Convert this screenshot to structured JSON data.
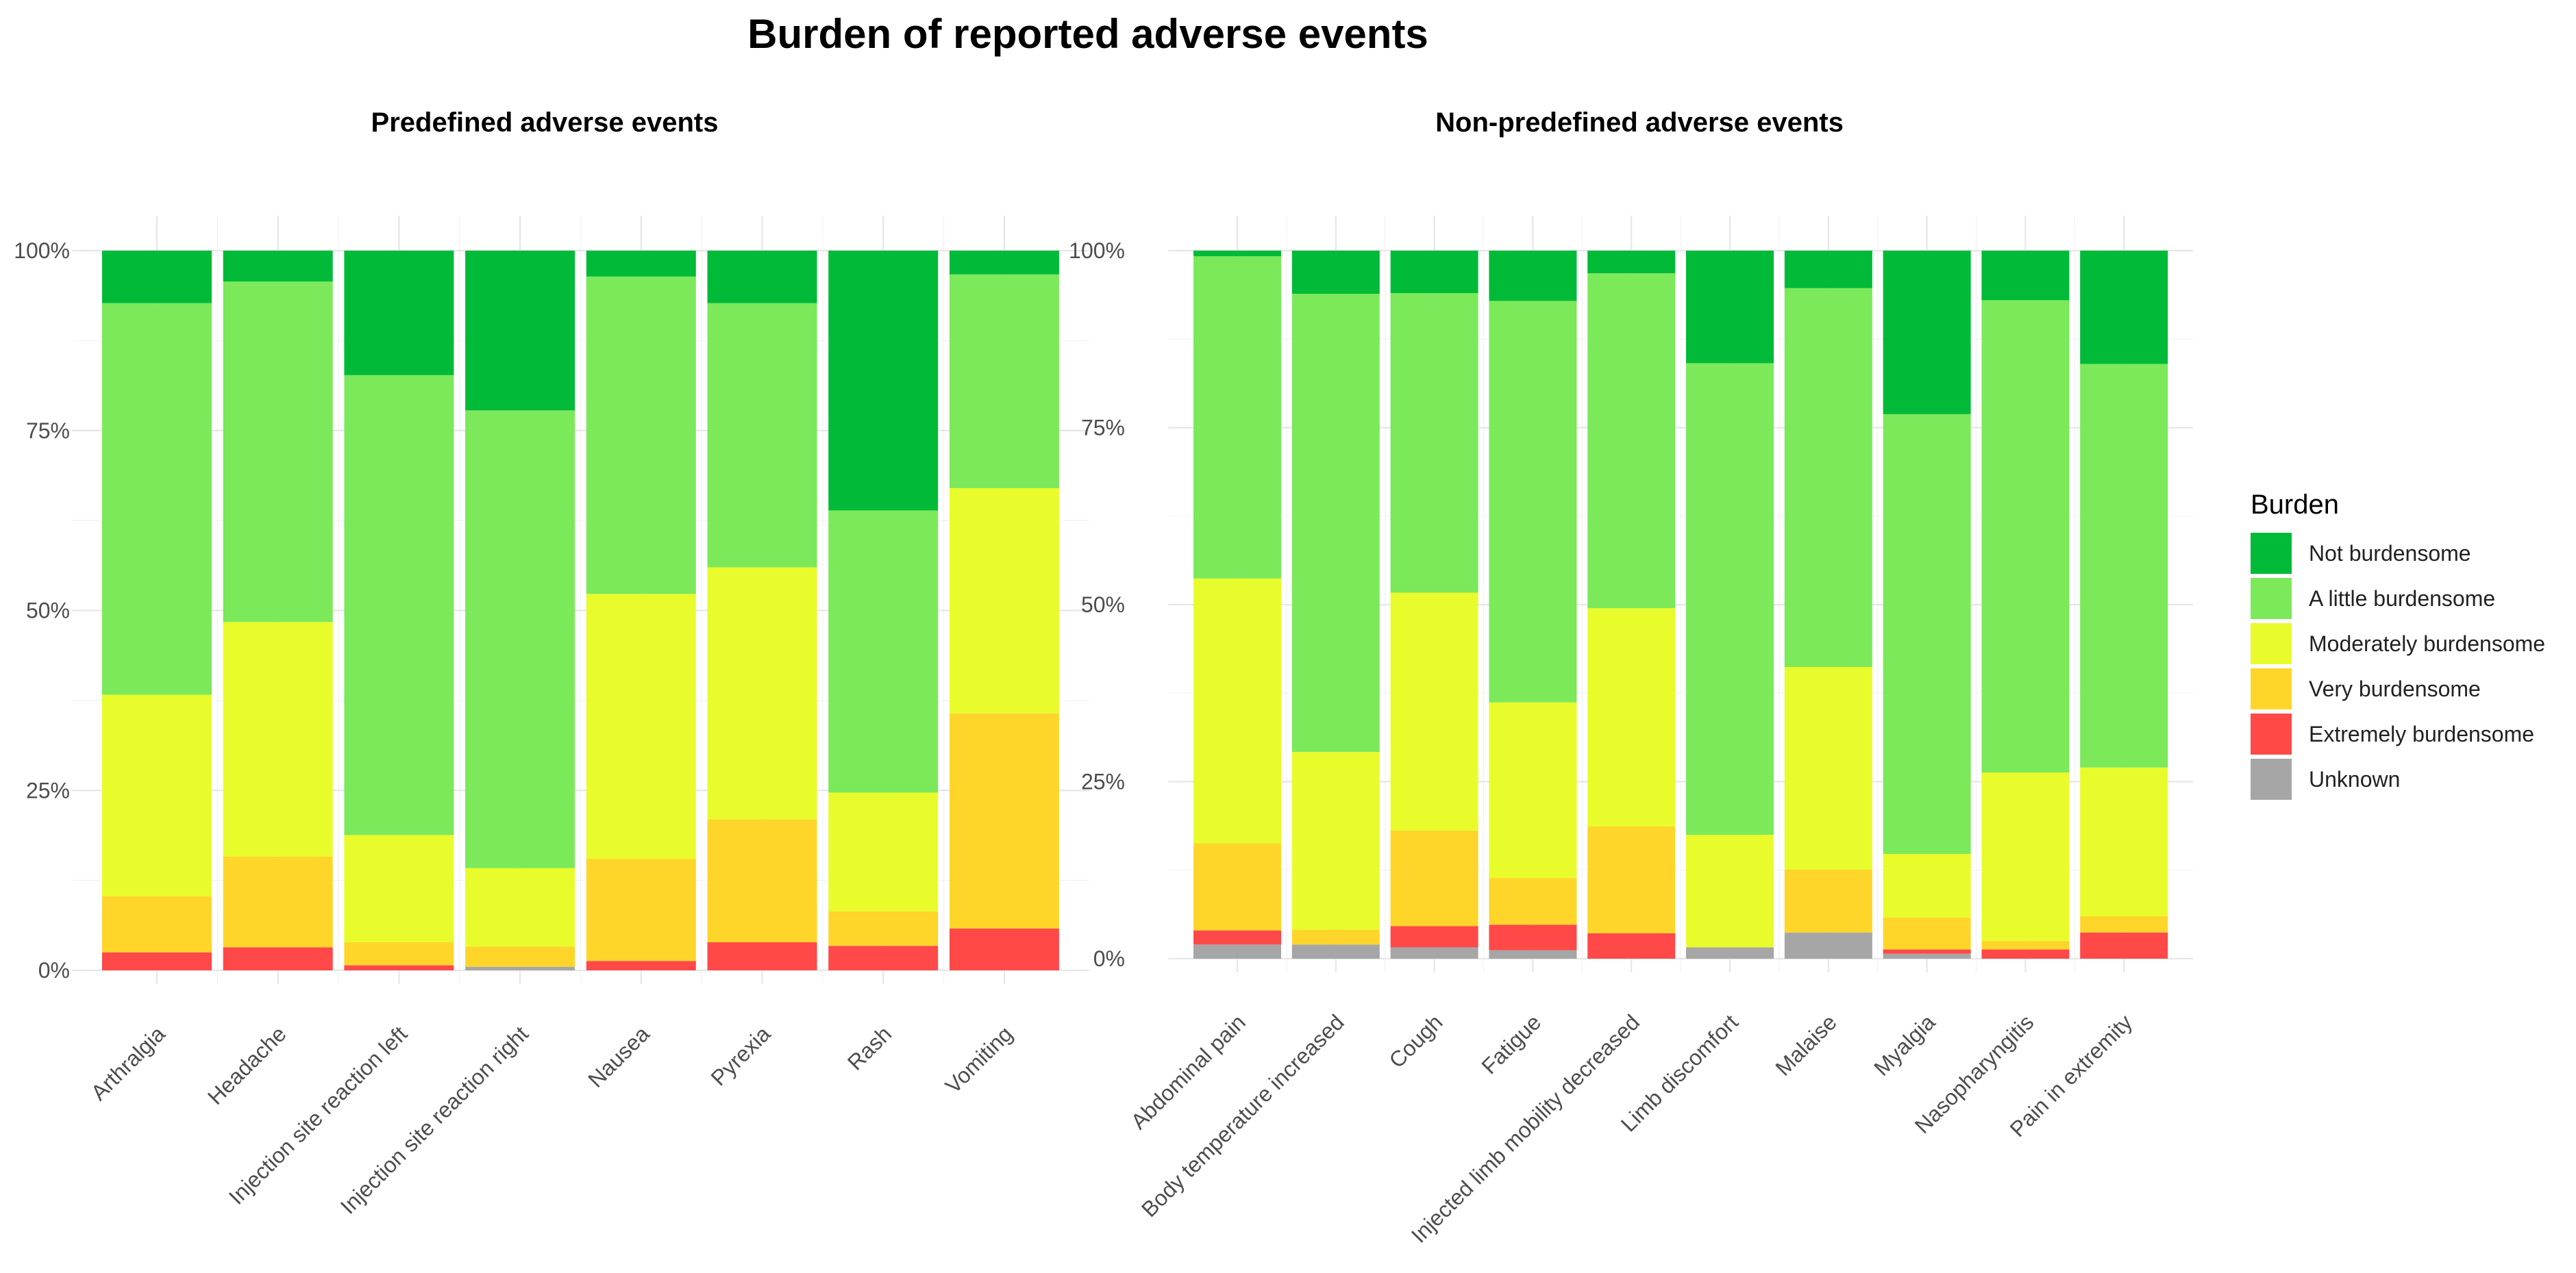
{
  "chart_data": {
    "title": "Burden of reported adverse events",
    "legend": {
      "title": "Burden",
      "placement": "right",
      "entries": [
        {
          "label": "Not burdensome",
          "color": "#00ba38"
        },
        {
          "label": "A little burdensome",
          "color": "#7be95a"
        },
        {
          "label": "Moderately burdensome",
          "color": "#e8fc2b"
        },
        {
          "label": "Very burdensome",
          "color": "#ffd52a"
        },
        {
          "label": "Extremely burdensome",
          "color": "#ff4848"
        },
        {
          "label": "Unknown",
          "color": "#a6a6a6"
        }
      ]
    },
    "panels": [
      {
        "type": "bar",
        "stacked": "percent",
        "title": "Predefined adverse events",
        "categories": [
          "Arthralgia",
          "Headache",
          "Injection site reaction left",
          "Injection site reaction right",
          "Nausea",
          "Pyrexia",
          "Rash",
          "Vomiting"
        ],
        "ylim": [
          0,
          100
        ],
        "yticks": [
          "0%",
          "25%",
          "50%",
          "75%",
          "100%"
        ],
        "series": [
          {
            "name": "Unknown",
            "values": [
              0,
              0,
              0,
              0.5,
              0,
              0,
              0,
              0
            ]
          },
          {
            "name": "Extremely burdensome",
            "values": [
              2.5,
              3.2,
              0.7,
              0,
              1.3,
              3.9,
              3.4,
              5.8
            ]
          },
          {
            "name": "Very burdensome",
            "values": [
              7.8,
              12.6,
              3.2,
              2.8,
              14.2,
              17.1,
              4.8,
              29.9
            ]
          },
          {
            "name": "Moderately burdensome",
            "values": [
              28,
              32.6,
              14.9,
              10.9,
              36.8,
              35,
              16.5,
              31.3
            ]
          },
          {
            "name": "A little burdensome",
            "values": [
              54.4,
              47.3,
              63.9,
              63.6,
              44.1,
              36.7,
              39.2,
              29.7
            ]
          },
          {
            "name": "Not burdensome",
            "values": [
              7.3,
              4.3,
              17.3,
              22.2,
              3.6,
              7.3,
              36.1,
              3.3
            ]
          }
        ]
      },
      {
        "type": "bar",
        "stacked": "percent",
        "title": "Non-predefined adverse events",
        "categories": [
          "Abdominal pain",
          "Body temperature increased",
          "Cough",
          "Fatigue",
          "Injected limb mobility decreased",
          "Limb discomfort",
          "Malaise",
          "Myalgia",
          "Nasopharyngitis",
          "Pain in extremity"
        ],
        "ylim": [
          0,
          100
        ],
        "yticks": [
          "0%",
          "25%",
          "50%",
          "75%",
          "100%"
        ],
        "series": [
          {
            "name": "Unknown",
            "values": [
              2,
              2,
              1.6,
              1.2,
              0,
              1.6,
              3.7,
              0.7,
              0,
              0
            ]
          },
          {
            "name": "Extremely burdensome",
            "values": [
              2,
              0,
              3,
              3.6,
              3.6,
              0,
              0,
              0.6,
              1.3,
              3.7
            ]
          },
          {
            "name": "Very burdensome",
            "values": [
              12.3,
              2.1,
              13.5,
              6.6,
              15.1,
              0,
              8.9,
              4.5,
              1.2,
              2.3
            ]
          },
          {
            "name": "Moderately burdensome",
            "values": [
              37.4,
              25.1,
              33.6,
              24.8,
              30.8,
              15.9,
              28.6,
              9,
              23.8,
              21
            ]
          },
          {
            "name": "A little burdensome",
            "values": [
              45.5,
              64.7,
              42.3,
              56.7,
              47.3,
              66.6,
              53.5,
              62.1,
              66.7,
              57
            ]
          },
          {
            "name": "Not burdensome",
            "values": [
              0.8,
              6.1,
              6,
              7.1,
              3.2,
              15.9,
              5.3,
              23.1,
              7,
              16
            ]
          }
        ]
      }
    ]
  }
}
